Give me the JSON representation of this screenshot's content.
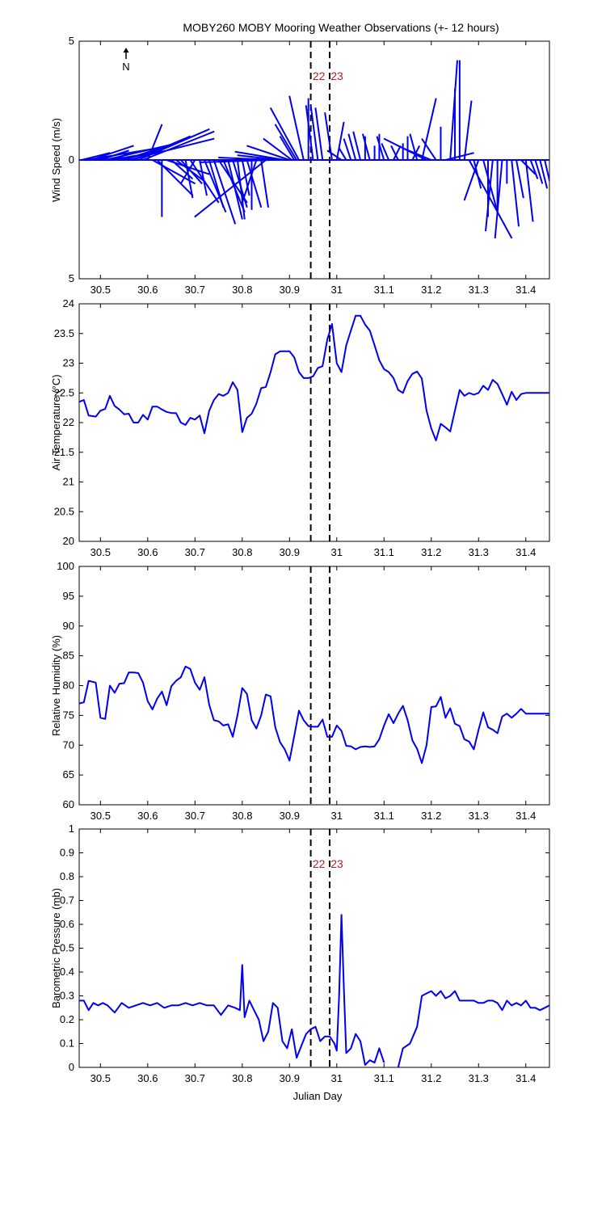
{
  "figure": {
    "title": "MOBY260 MOBY Mooring Weather Observations (+- 12 hours)",
    "xlabel": "Julian Day",
    "north_label": "N",
    "marker_lines": [
      30.945,
      30.985
    ],
    "marker_labels": [
      "22",
      "23"
    ]
  },
  "chart_data": [
    {
      "type": "line",
      "name": "wind",
      "ylabel": "Wind Speed (m/s)",
      "xlim": [
        30.455,
        31.45
      ],
      "ylim": [
        -5,
        5
      ],
      "yticks": [
        -5,
        0,
        5
      ],
      "yticklabels": [
        "5",
        "0",
        "5"
      ],
      "xticks": [
        30.5,
        30.6,
        30.7,
        30.8,
        30.9,
        31.0,
        31.1,
        31.2,
        31.3,
        31.4
      ],
      "xticklabels": [
        "30.5",
        "30.6",
        "30.7",
        "30.8",
        "30.9",
        "31",
        "31.1",
        "31.2",
        "31.3",
        "31.4"
      ],
      "show_marker_labels": true,
      "show_north": true,
      "color": "#0000ee",
      "stick_vectors": {
        "x": [
          30.46,
          30.47,
          30.48,
          30.49,
          30.5,
          30.51,
          30.52,
          30.53,
          30.54,
          30.55,
          30.56,
          30.57,
          30.58,
          30.59,
          30.6,
          30.61,
          30.62,
          30.63,
          30.64,
          30.65,
          30.66,
          30.67,
          30.68,
          30.69,
          30.7,
          30.71,
          30.72,
          30.73,
          30.74,
          30.75,
          30.76,
          30.77,
          30.78,
          30.79,
          30.8,
          30.81,
          30.82,
          30.83,
          30.84,
          30.85,
          30.86,
          30.87,
          30.88,
          30.89,
          30.9,
          30.905,
          30.91,
          30.915,
          30.92,
          30.93,
          30.94,
          30.95,
          30.96,
          30.97,
          30.99,
          31.0,
          31.01,
          31.02,
          31.03,
          31.04,
          31.05,
          31.06,
          31.07,
          31.08,
          31.09,
          31.1,
          31.11,
          31.12,
          31.13,
          31.14,
          31.15,
          31.16,
          31.17,
          31.18,
          31.19,
          31.2,
          31.21,
          31.22,
          31.23,
          31.24,
          31.25,
          31.26,
          31.27,
          31.28,
          31.29,
          31.3,
          31.31,
          31.32,
          31.33,
          31.34,
          31.35,
          31.36,
          31.37,
          31.38,
          31.39,
          31.4,
          31.41,
          31.42,
          31.43,
          31.44
        ],
        "u": [
          0.2,
          0.5,
          0.3,
          0.2,
          0.2,
          0.5,
          0.2,
          0.1,
          0.3,
          0.3,
          0.6,
          0.4,
          0.5,
          0.5,
          0.1,
          0.3,
          0.25,
          0.0,
          0.3,
          0.15,
          0.2,
          0.15,
          0.05,
          0.2,
          -0.1,
          0.05,
          0.15,
          0.1,
          0.15,
          0.2,
          0.15,
          0.1,
          0.1,
          0.05,
          0.05,
          0.1,
          0.0,
          -0.1,
          0.05,
          -0.5,
          -0.5,
          -0.4,
          -0.3,
          -0.35,
          -0.3,
          -0.2,
          -0.1,
          -0.15,
          -0.2,
          -0.1,
          0.0,
          -0.05,
          -0.05,
          -0.05,
          -0.05,
          0.05,
          -0.1,
          -0.05,
          -0.05,
          -0.05,
          -0.05,
          0.0,
          -0.05,
          0.0,
          0.0,
          -0.05,
          -0.05,
          0.05,
          -0.05,
          0.0,
          0.0,
          0.05,
          -0.05,
          0.1,
          -0.3,
          -0.2,
          -0.1,
          0.0,
          0.2,
          0.05,
          0.0,
          0.0,
          0.05,
          0.3,
          0.05,
          -0.1,
          0.1,
          0.0,
          -0.05,
          0.0,
          -0.05,
          0.0,
          0.05,
          0.05,
          0.1,
          0.05,
          0.05,
          0.05,
          0.05,
          0.05
        ],
        "v": [
          0.3,
          0.5,
          0.6,
          0.3,
          0.4,
          0.7,
          0.2,
          0.3,
          0.4,
          0.6,
          0.9,
          1.0,
          1.3,
          1.2,
          1.5,
          -1.0,
          -1.5,
          -2.4,
          -0.6,
          -0.8,
          -0.9,
          -1.0,
          -1.6,
          -1.8,
          -1.0,
          -1.5,
          -2.2,
          -2.0,
          -2.7,
          -1.8,
          -2.2,
          -2.5,
          -2.0,
          -2.5,
          -1.5,
          -2.0,
          -2.1,
          -1.8,
          -2.0,
          -2.4,
          -0.1,
          0.1,
          0.2,
          0.35,
          0.6,
          0.9,
          1.0,
          1.5,
          2.2,
          2.7,
          2.6,
          2.3,
          2.3,
          2.2,
          2.0,
          1.6,
          0.4,
          0.5,
          0.9,
          1.1,
          1.2,
          1.0,
          1.1,
          0.6,
          1.1,
          1.0,
          0.7,
          0.6,
          0.6,
          0.7,
          1.0,
          0.6,
          1.1,
          2.6,
          0.9,
          0.5,
          0.9,
          1.4,
          0.3,
          4.2,
          3.0,
          4.2,
          2.5,
          -3.3,
          -1.2,
          -1.7,
          -2.2,
          -2.4,
          -3.0,
          -2.3,
          -3.3,
          -1.0,
          -2.8,
          -1.6,
          -0.6,
          -2.6,
          -0.8,
          -1.0,
          -1.2,
          -1.3
        ],
        "v_plot_note": "negative v drawn below zero line"
      }
    },
    {
      "type": "line",
      "name": "air_temperature",
      "ylabel": "Air Temperature (°C)",
      "xlim": [
        30.455,
        31.45
      ],
      "ylim": [
        20,
        24
      ],
      "yticks": [
        20,
        20.5,
        21,
        21.5,
        22,
        22.5,
        23,
        23.5,
        24
      ],
      "yticklabels": [
        "20",
        "20.5",
        "21",
        "21.5",
        "22",
        "22.5",
        "23",
        "23.5",
        "24"
      ],
      "xticks": [
        30.5,
        30.6,
        30.7,
        30.8,
        30.9,
        31.0,
        31.1,
        31.2,
        31.3,
        31.4
      ],
      "xticklabels": [
        "30.5",
        "30.6",
        "30.7",
        "30.8",
        "30.9",
        "31",
        "31.1",
        "31.2",
        "31.3",
        "31.4"
      ],
      "show_marker_labels": false,
      "color": "#0000ee",
      "x": [
        30.455,
        30.465,
        30.475,
        30.49,
        30.5,
        30.51,
        30.52,
        30.53,
        30.54,
        30.55,
        30.56,
        30.57,
        30.58,
        30.59,
        30.6,
        30.61,
        30.62,
        30.63,
        30.64,
        30.65,
        30.66,
        30.67,
        30.68,
        30.69,
        30.7,
        30.71,
        30.72,
        30.73,
        30.74,
        30.75,
        30.76,
        30.77,
        30.78,
        30.79,
        30.8,
        30.81,
        30.82,
        30.83,
        30.84,
        30.85,
        30.86,
        30.87,
        30.88,
        30.89,
        30.9,
        30.91,
        30.92,
        30.93,
        30.94,
        30.95,
        30.96,
        30.97,
        30.98,
        30.99,
        31.0,
        31.01,
        31.02,
        31.03,
        31.04,
        31.05,
        31.06,
        31.07,
        31.08,
        31.09,
        31.1,
        31.11,
        31.12,
        31.13,
        31.14,
        31.15,
        31.16,
        31.17,
        31.18,
        31.19,
        31.2,
        31.21,
        31.22,
        31.23,
        31.24,
        31.25,
        31.26,
        31.27,
        31.28,
        31.29,
        31.3,
        31.31,
        31.32,
        31.33,
        31.34,
        31.35,
        31.36,
        31.37,
        31.38,
        31.39,
        31.4,
        31.41,
        31.42,
        31.43,
        31.44,
        31.45
      ],
      "y": [
        22.35,
        22.38,
        22.12,
        22.1,
        22.2,
        22.23,
        22.45,
        22.28,
        22.22,
        22.14,
        22.15,
        22.0,
        22.0,
        22.13,
        22.05,
        22.27,
        22.27,
        22.22,
        22.18,
        22.16,
        22.16,
        22.0,
        21.96,
        22.08,
        22.05,
        22.12,
        21.82,
        22.2,
        22.38,
        22.48,
        22.45,
        22.5,
        22.68,
        22.55,
        21.84,
        22.08,
        22.15,
        22.32,
        22.58,
        22.6,
        22.85,
        23.15,
        23.2,
        23.2,
        23.2,
        23.1,
        22.85,
        22.75,
        22.75,
        22.78,
        22.92,
        22.95,
        23.4,
        23.66,
        23.0,
        22.85,
        23.3,
        23.55,
        23.8,
        23.8,
        23.65,
        23.55,
        23.3,
        23.05,
        22.9,
        22.85,
        22.75,
        22.55,
        22.5,
        22.7,
        22.82,
        22.86,
        22.74,
        22.2,
        21.9,
        21.7,
        21.98,
        21.92,
        21.85,
        22.2,
        22.55,
        22.45,
        22.5,
        22.47,
        22.5,
        22.62,
        22.55,
        22.72,
        22.65,
        22.48,
        22.3,
        22.52,
        22.38,
        22.48,
        22.5,
        22.5,
        22.5,
        22.5,
        22.5,
        22.5
      ],
      "y_len_note": "first 97 points used"
    },
    {
      "type": "line",
      "name": "relative_humidity",
      "ylabel": "Relative Humidity (%)",
      "xlim": [
        30.455,
        31.45
      ],
      "ylim": [
        60,
        100
      ],
      "yticks": [
        60,
        65,
        70,
        75,
        80,
        85,
        90,
        95,
        100
      ],
      "yticklabels": [
        "60",
        "65",
        "70",
        "75",
        "80",
        "85",
        "90",
        "95",
        "100"
      ],
      "xticks": [
        30.5,
        30.6,
        30.7,
        30.8,
        30.9,
        31.0,
        31.1,
        31.2,
        31.3,
        31.4
      ],
      "xticklabels": [
        "30.5",
        "30.6",
        "30.7",
        "30.8",
        "30.9",
        "31",
        "31.1",
        "31.2",
        "31.3",
        "31.4"
      ],
      "show_marker_labels": false,
      "color": "#0000ee",
      "x": [
        30.455,
        30.465,
        30.475,
        30.49,
        30.5,
        30.51,
        30.52,
        30.53,
        30.54,
        30.55,
        30.56,
        30.57,
        30.58,
        30.59,
        30.6,
        30.61,
        30.62,
        30.63,
        30.64,
        30.65,
        30.66,
        30.67,
        30.68,
        30.69,
        30.7,
        30.71,
        30.72,
        30.73,
        30.74,
        30.75,
        30.76,
        30.77,
        30.78,
        30.79,
        30.8,
        30.81,
        30.82,
        30.83,
        30.84,
        30.85,
        30.86,
        30.87,
        30.88,
        30.89,
        30.9,
        30.91,
        30.92,
        30.93,
        30.94,
        30.95,
        30.96,
        30.97,
        30.98,
        30.99,
        31.0,
        31.01,
        31.02,
        31.03,
        31.04,
        31.05,
        31.06,
        31.07,
        31.08,
        31.09,
        31.1,
        31.11,
        31.12,
        31.13,
        31.14,
        31.15,
        31.16,
        31.17,
        31.18,
        31.19,
        31.2,
        31.21,
        31.22,
        31.23,
        31.24,
        31.25,
        31.26,
        31.27,
        31.28,
        31.29,
        31.3,
        31.31,
        31.32,
        31.33,
        31.34,
        31.35,
        31.36,
        31.37,
        31.38,
        31.39,
        31.4,
        31.41,
        31.42,
        31.43,
        31.44,
        31.45
      ],
      "y": [
        77.0,
        77.2,
        80.8,
        80.5,
        74.6,
        74.4,
        80.0,
        78.8,
        80.3,
        80.4,
        82.2,
        82.2,
        82.1,
        80.5,
        77.4,
        76.0,
        77.8,
        79.0,
        76.7,
        79.9,
        80.8,
        81.4,
        83.2,
        82.8,
        80.5,
        79.3,
        81.4,
        76.8,
        74.2,
        74.0,
        73.3,
        73.5,
        71.4,
        75.0,
        79.6,
        78.6,
        74.2,
        72.8,
        75.0,
        78.5,
        78.2,
        73.0,
        70.5,
        69.3,
        67.4,
        71.5,
        75.8,
        74.2,
        73.2,
        73.1,
        73.1,
        74.3,
        71.4,
        71.4,
        73.3,
        72.4,
        69.9,
        69.8,
        69.3,
        69.7,
        69.8,
        69.7,
        69.8,
        71.0,
        73.3,
        75.2,
        73.7,
        75.3,
        76.6,
        74.2,
        70.8,
        69.4,
        67.0,
        70.0,
        76.4,
        76.5,
        78.1,
        74.6,
        76.2,
        73.6,
        73.2,
        71.0,
        70.6,
        69.3,
        72.6,
        75.5,
        73.0,
        72.6,
        72.0,
        74.8,
        75.3,
        74.6,
        75.3,
        76.1,
        75.3,
        75.3,
        75.3,
        75.3,
        75.3,
        75.3
      ]
    },
    {
      "type": "line",
      "name": "barometric_pressure",
      "ylabel": "Barometric Pressure (mb)",
      "xlim": [
        30.455,
        31.45
      ],
      "ylim": [
        0,
        1
      ],
      "yticks": [
        0,
        0.1,
        0.2,
        0.3,
        0.4,
        0.5,
        0.6,
        0.7,
        0.8,
        0.9,
        1
      ],
      "yticklabels": [
        "0",
        "0.1",
        "0.2",
        "0.3",
        "0.4",
        "0.5",
        "0.6",
        "0.7",
        "0.8",
        "0.9",
        "1"
      ],
      "xticks": [
        30.5,
        30.6,
        30.7,
        30.8,
        30.9,
        31.0,
        31.1,
        31.2,
        31.3,
        31.4
      ],
      "xticklabels": [
        "30.5",
        "30.6",
        "30.7",
        "30.8",
        "30.9",
        "31",
        "31.1",
        "31.2",
        "31.3",
        "31.4"
      ],
      "show_marker_labels": true,
      "color": "#0000ee",
      "segments": [
        {
          "x": [
            30.455,
            30.465,
            30.475,
            30.485,
            30.495,
            30.505,
            30.515,
            30.53,
            30.545,
            30.56,
            30.575,
            30.59,
            30.605,
            30.62,
            30.635,
            30.65,
            30.665,
            30.68,
            30.695,
            30.71,
            30.725,
            30.74,
            30.755,
            30.77,
            30.785,
            30.795,
            30.8,
            30.805,
            30.815,
            30.825,
            30.835,
            30.845,
            30.855,
            30.865,
            30.875,
            30.885,
            30.895,
            30.905,
            30.915,
            30.925,
            30.935,
            30.945,
            30.955,
            30.965,
            30.975,
            30.985,
            30.995,
            31.0,
            31.005,
            31.01,
            31.015,
            31.02,
            31.03,
            31.04,
            31.05,
            31.06,
            31.07,
            31.08,
            31.09,
            31.1
          ],
          "y": [
            0.28,
            0.28,
            0.24,
            0.27,
            0.26,
            0.27,
            0.26,
            0.23,
            0.27,
            0.25,
            0.26,
            0.27,
            0.26,
            0.27,
            0.25,
            0.26,
            0.26,
            0.27,
            0.26,
            0.27,
            0.26,
            0.26,
            0.22,
            0.26,
            0.25,
            0.24,
            0.43,
            0.21,
            0.28,
            0.24,
            0.2,
            0.11,
            0.15,
            0.27,
            0.25,
            0.11,
            0.08,
            0.16,
            0.04,
            0.09,
            0.14,
            0.16,
            0.17,
            0.11,
            0.13,
            0.13,
            0.1,
            0.07,
            0.3,
            0.64,
            0.33,
            0.06,
            0.08,
            0.14,
            0.11,
            0.01,
            0.03,
            0.02,
            0.08,
            0.02
          ]
        },
        {
          "x": [
            31.13,
            31.14,
            31.155,
            31.17,
            31.18,
            31.19,
            31.2,
            31.21,
            31.22,
            31.23,
            31.24,
            31.25,
            31.26,
            31.27,
            31.28,
            31.29,
            31.3,
            31.31,
            31.32,
            31.33,
            31.34,
            31.35,
            31.36,
            31.37,
            31.38,
            31.39,
            31.4,
            31.41,
            31.42,
            31.43,
            31.44,
            31.45
          ],
          "y": [
            0.0,
            0.08,
            0.1,
            0.17,
            0.3,
            0.31,
            0.32,
            0.3,
            0.32,
            0.29,
            0.3,
            0.32,
            0.28,
            0.28,
            0.28,
            0.28,
            0.27,
            0.27,
            0.28,
            0.28,
            0.27,
            0.24,
            0.28,
            0.26,
            0.27,
            0.26,
            0.28,
            0.25,
            0.25,
            0.24,
            0.25,
            0.26
          ]
        }
      ]
    }
  ]
}
